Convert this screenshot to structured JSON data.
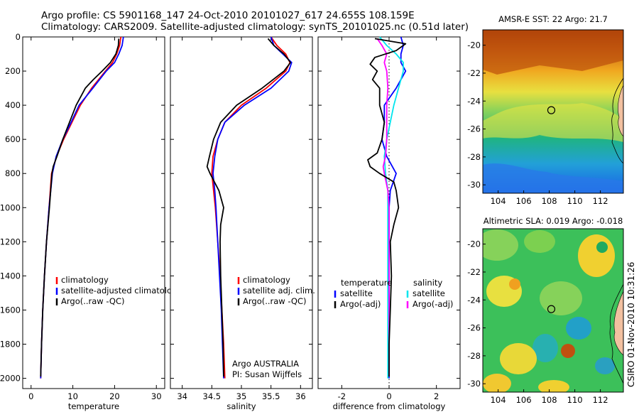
{
  "header": {
    "line1": "Argo profile: CS 5901168_147 24-Oct-2010 20101027_617 24.655S 108.159E",
    "line2": "Climatology: CARS2009. Satellite-adjusted climatology: synTS_20101025.nc (0.51d later)"
  },
  "colors": {
    "climatology": "#ff0000",
    "satellite": "#0000ff",
    "argo": "#000000",
    "salinity_satellite": "#00e5ee",
    "salinity_argo": "#ff00ff"
  },
  "chart_data": [
    {
      "type": "line",
      "panel": "temperature",
      "xlabel": "temperature",
      "xlim": [
        -2,
        32
      ],
      "xticks": [
        0,
        10,
        20,
        30
      ],
      "ylim": [
        2060,
        0
      ],
      "yticks": [
        0,
        200,
        400,
        600,
        800,
        1000,
        1200,
        1400,
        1600,
        1800,
        2000
      ],
      "legend": [
        "climatology",
        "satellite-adjusted climatology",
        "Argo(..raw -QC)"
      ],
      "series": [
        {
          "name": "climatology",
          "color": "#ff0000",
          "depth": [
            0,
            50,
            100,
            150,
            200,
            300,
            400,
            500,
            600,
            700,
            800,
            1000,
            1200,
            1400,
            1600,
            1800,
            2000
          ],
          "value": [
            21.5,
            21.2,
            20.5,
            19.5,
            17.8,
            14.5,
            11.8,
            9.8,
            7.8,
            6.1,
            4.9,
            4.3,
            3.7,
            3.2,
            2.8,
            2.5,
            2.3
          ]
        },
        {
          "name": "satellite-adjusted climatology",
          "color": "#0000ff",
          "depth": [
            0,
            50,
            100,
            150,
            200,
            300,
            400,
            500,
            600,
            700,
            800,
            1000,
            1200,
            1400,
            1600,
            1800,
            2000
          ],
          "value": [
            22.1,
            21.8,
            21.0,
            20.0,
            18.0,
            14.8,
            11.5,
            9.6,
            7.6,
            6.0,
            5.1,
            4.3,
            3.7,
            3.2,
            2.8,
            2.5,
            2.3
          ]
        },
        {
          "name": "Argo(..raw -QC)",
          "color": "#000000",
          "depth": [
            10,
            50,
            100,
            150,
            200,
            250,
            300,
            400,
            500,
            600,
            700,
            760,
            800,
            1000,
            1200,
            1400,
            1600,
            1800,
            1990
          ],
          "value": [
            21.0,
            20.9,
            20.3,
            19.0,
            17.0,
            14.9,
            13.0,
            10.8,
            9.2,
            7.6,
            6.2,
            5.3,
            5.0,
            4.4,
            3.7,
            3.2,
            2.8,
            2.5,
            2.3
          ]
        }
      ]
    },
    {
      "type": "line",
      "panel": "salinity",
      "xlabel": "salinity",
      "xlim": [
        33.8,
        36.2
      ],
      "xticks": [
        34,
        34.5,
        35,
        35.5,
        36
      ],
      "ylim": [
        2060,
        0
      ],
      "legend": [
        "climatology",
        "satellite adj. clim.",
        "Argo(..raw -QC)"
      ],
      "annotation": [
        "Argo AUSTRALIA",
        "PI: Susan Wijffels"
      ],
      "series": [
        {
          "name": "climatology",
          "color": "#ff0000",
          "depth": [
            0,
            50,
            100,
            150,
            200,
            300,
            400,
            500,
            600,
            700,
            800,
            900,
            1000,
            1200,
            1400,
            1600,
            1800,
            2000
          ],
          "value": [
            35.5,
            35.6,
            35.75,
            35.82,
            35.75,
            35.42,
            35.0,
            34.72,
            34.6,
            34.52,
            34.5,
            34.53,
            34.56,
            34.6,
            34.64,
            34.67,
            34.7,
            34.72
          ]
        },
        {
          "name": "satellite adj. clim.",
          "color": "#0000ff",
          "depth": [
            0,
            50,
            100,
            150,
            200,
            300,
            400,
            500,
            600,
            700,
            800,
            900,
            1000,
            1200,
            1400,
            1600,
            1800,
            2000
          ],
          "value": [
            35.5,
            35.55,
            35.7,
            35.85,
            35.8,
            35.5,
            35.05,
            34.72,
            34.6,
            34.55,
            34.52,
            34.55,
            34.57,
            34.6,
            34.63,
            34.66,
            34.68,
            34.7
          ]
        },
        {
          "name": "Argo(..raw -QC)",
          "color": "#000000",
          "depth": [
            10,
            50,
            100,
            150,
            200,
            300,
            400,
            500,
            600,
            700,
            760,
            800,
            900,
            1000,
            1100,
            1200,
            1400,
            1600,
            1800,
            1990
          ],
          "value": [
            35.45,
            35.55,
            35.72,
            35.83,
            35.72,
            35.35,
            34.92,
            34.65,
            34.53,
            34.46,
            34.42,
            34.47,
            34.62,
            34.7,
            34.65,
            34.64,
            34.65,
            34.67,
            34.69,
            34.7
          ]
        }
      ]
    },
    {
      "type": "line",
      "panel": "difference",
      "xlabel": "difference from climatology",
      "xlim": [
        -3,
        3
      ],
      "xticks": [
        -2,
        0,
        2
      ],
      "ylim": [
        2060,
        0
      ],
      "legend_left": [
        "temperature",
        "satellite",
        "Argo(-adj)"
      ],
      "legend_right": [
        "salinity",
        "satellite",
        "Argo(-adj)"
      ],
      "series": [
        {
          "name": "temperature satellite",
          "color": "#0000ff",
          "depth": [
            0,
            50,
            100,
            150,
            200,
            300,
            400,
            500,
            600,
            700,
            800,
            900,
            1000,
            1200,
            1400,
            1600,
            1800,
            2000
          ],
          "value": [
            0.5,
            0.6,
            0.5,
            0.5,
            0.7,
            0.3,
            -0.2,
            -0.2,
            -0.3,
            -0.1,
            0.3,
            0.05,
            0.0,
            0.0,
            0.0,
            0.0,
            0.0,
            0.0
          ]
        },
        {
          "name": "temperature Argo(-adj)",
          "color": "#000000",
          "depth": [
            10,
            40,
            80,
            120,
            160,
            200,
            250,
            300,
            400,
            500,
            600,
            680,
            720,
            760,
            800,
            850,
            900,
            1000,
            1100,
            1200,
            1400,
            1600,
            1800,
            1990
          ],
          "value": [
            -0.6,
            0.7,
            0.3,
            -0.6,
            -0.8,
            -0.5,
            -0.7,
            -0.4,
            -0.4,
            -0.2,
            -0.3,
            -0.5,
            -0.9,
            -0.8,
            -0.4,
            0.2,
            0.3,
            0.4,
            0.2,
            0.05,
            0.1,
            0.05,
            0.0,
            0.0
          ]
        },
        {
          "name": "salinity satellite",
          "color": "#00e5ee",
          "depth": [
            0,
            50,
            100,
            150,
            200,
            300,
            400,
            500,
            600,
            700,
            800,
            900,
            1000,
            1200,
            1400,
            1600,
            1800,
            2000
          ],
          "value": [
            -0.4,
            -0.1,
            0.3,
            0.6,
            0.6,
            0.4,
            0.2,
            0.05,
            -0.1,
            -0.2,
            -0.15,
            -0.05,
            -0.05,
            -0.05,
            -0.05,
            -0.05,
            -0.05,
            -0.05
          ]
        },
        {
          "name": "salinity Argo(-adj)",
          "color": "#ff00ff",
          "depth": [
            10,
            50,
            100,
            150,
            200,
            300,
            400,
            500,
            600,
            700,
            760,
            800,
            900,
            1000,
            1200,
            1400,
            1600,
            1800,
            1990
          ],
          "value": [
            -0.5,
            -0.3,
            -0.1,
            -0.2,
            -0.1,
            -0.05,
            -0.1,
            -0.1,
            -0.1,
            -0.15,
            -0.25,
            -0.2,
            -0.05,
            0.0,
            0.0,
            0.0,
            0.0,
            0.0,
            0.0
          ]
        }
      ]
    },
    {
      "type": "heatmap",
      "panel": "sst-map",
      "title": "AMSR-E SST: 22 Argo: 21.7",
      "xlim": [
        102.8,
        113.8
      ],
      "ylim": [
        -30.6,
        -18.9
      ],
      "xticks": [
        104,
        106,
        108,
        110,
        112
      ],
      "yticks": [
        -20,
        -22,
        -24,
        -26,
        -28,
        -30
      ],
      "marker": {
        "lon": 108.159,
        "lat": -24.655
      }
    },
    {
      "type": "heatmap",
      "panel": "sla-map",
      "title": "Altimetric SLA: 0.019 Argo: -0.018",
      "xlim": [
        102.8,
        113.8
      ],
      "ylim": [
        -30.6,
        -18.9
      ],
      "xticks": [
        104,
        106,
        108,
        110,
        112
      ],
      "yticks": [
        -20,
        -22,
        -24,
        -26,
        -28,
        -30
      ],
      "marker": {
        "lon": 108.159,
        "lat": -24.655
      }
    }
  ],
  "footer": {
    "stamp": "CSIRO 01-Nov-2010 10:31:26"
  }
}
